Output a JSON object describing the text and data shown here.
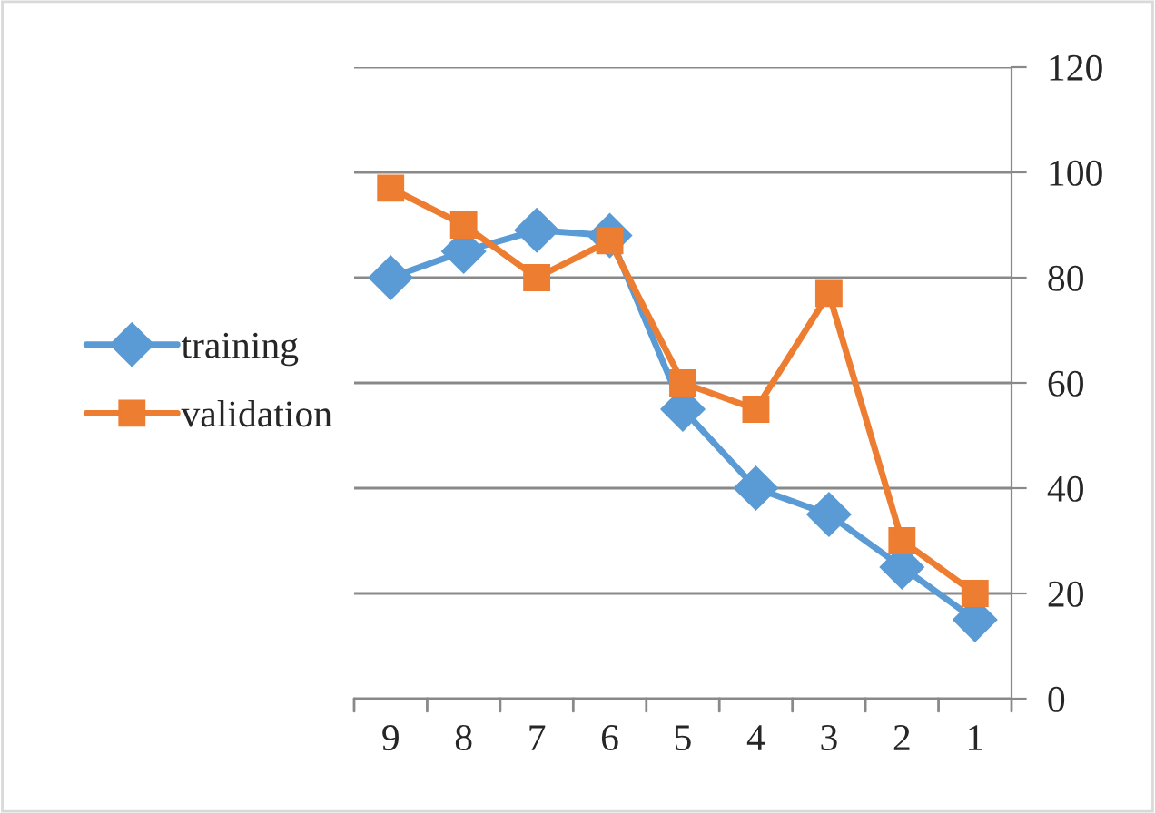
{
  "chart_data": {
    "type": "line",
    "categories": [
      "9",
      "8",
      "7",
      "6",
      "5",
      "4",
      "3",
      "2",
      "1"
    ],
    "series": [
      {
        "name": "training",
        "color": "#5b9bd5",
        "marker": "diamond",
        "values": [
          80,
          85,
          89,
          88,
          55,
          40,
          35,
          25,
          15
        ]
      },
      {
        "name": "validation",
        "color": "#ed7d31",
        "marker": "square",
        "values": [
          97,
          90,
          80,
          87,
          60,
          55,
          77,
          30,
          20
        ]
      }
    ],
    "ylim": [
      0,
      120
    ],
    "yticks": [
      0,
      20,
      40,
      60,
      80,
      100,
      120
    ],
    "grid": "y",
    "legend": "left"
  }
}
